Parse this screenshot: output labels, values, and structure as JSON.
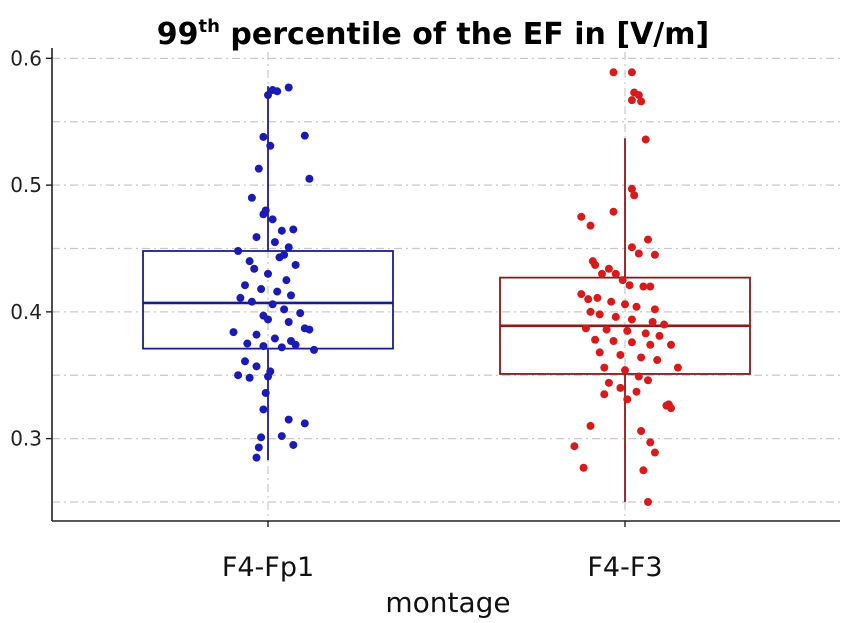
{
  "chart_data": {
    "type": "box",
    "title_main": "99",
    "title_sup": "th",
    "title_rest": " percentile of the EF in [V/m]",
    "xlabel": "montage",
    "ylabel": "",
    "ylim": [
      0.235,
      0.605
    ],
    "yticks": [
      0.3,
      0.4,
      0.5,
      0.6
    ],
    "ytick_labels": [
      "0.3",
      "0.4",
      "0.5",
      "0.6"
    ],
    "grid": true,
    "categories": [
      "F4-Fp1",
      "F4-F3"
    ],
    "series": [
      {
        "category": "F4-Fp1",
        "color": "#1a1ab4",
        "box": {
          "whisker_low": 0.283,
          "q1": 0.371,
          "median": 0.407,
          "q3": 0.448,
          "whisker_high": 0.578
        },
        "points": [
          [
            -0.07,
            0.49
          ],
          [
            0.02,
            0.575
          ],
          [
            0.0,
            0.571
          ],
          [
            0.04,
            0.574
          ],
          [
            0.09,
            0.577
          ],
          [
            -0.02,
            0.538
          ],
          [
            0.01,
            0.531
          ],
          [
            0.16,
            0.539
          ],
          [
            -0.04,
            0.513
          ],
          [
            0.18,
            0.505
          ],
          [
            -0.01,
            0.48
          ],
          [
            -0.02,
            0.477
          ],
          [
            0.02,
            0.473
          ],
          [
            0.06,
            0.464
          ],
          [
            0.11,
            0.465
          ],
          [
            -0.05,
            0.459
          ],
          [
            0.03,
            0.455
          ],
          [
            0.09,
            0.451
          ],
          [
            0.07,
            0.445
          ],
          [
            -0.13,
            0.448
          ],
          [
            -0.08,
            0.44
          ],
          [
            0.05,
            0.443
          ],
          [
            0.12,
            0.437
          ],
          [
            -0.06,
            0.434
          ],
          [
            0.0,
            0.43
          ],
          [
            0.08,
            0.425
          ],
          [
            -0.1,
            0.421
          ],
          [
            -0.03,
            0.418
          ],
          [
            0.04,
            0.416
          ],
          [
            0.1,
            0.413
          ],
          [
            -0.12,
            0.411
          ],
          [
            -0.07,
            0.408
          ],
          [
            0.02,
            0.406
          ],
          [
            0.07,
            0.402
          ],
          [
            0.14,
            0.399
          ],
          [
            -0.02,
            0.397
          ],
          [
            0.0,
            0.394
          ],
          [
            0.09,
            0.392
          ],
          [
            0.16,
            0.387
          ],
          [
            0.18,
            0.386
          ],
          [
            -0.15,
            0.384
          ],
          [
            -0.05,
            0.382
          ],
          [
            0.03,
            0.379
          ],
          [
            0.1,
            0.377
          ],
          [
            -0.09,
            0.375
          ],
          [
            -0.02,
            0.373
          ],
          [
            0.06,
            0.372
          ],
          [
            0.12,
            0.374
          ],
          [
            0.2,
            0.37
          ],
          [
            -0.1,
            0.361
          ],
          [
            -0.05,
            0.357
          ],
          [
            0.01,
            0.353
          ],
          [
            -0.13,
            0.35
          ],
          [
            -0.08,
            0.348
          ],
          [
            0.0,
            0.349
          ],
          [
            -0.01,
            0.336
          ],
          [
            -0.02,
            0.323
          ],
          [
            0.09,
            0.315
          ],
          [
            0.16,
            0.312
          ],
          [
            0.06,
            0.302
          ],
          [
            -0.03,
            0.301
          ],
          [
            0.11,
            0.295
          ],
          [
            -0.04,
            0.293
          ],
          [
            -0.05,
            0.285
          ]
        ]
      },
      {
        "category": "F4-F3",
        "color": "#d81a1a",
        "box": {
          "whisker_low": 0.25,
          "q1": 0.351,
          "median": 0.389,
          "q3": 0.427,
          "whisker_high": 0.537
        },
        "points": [
          [
            -0.19,
            0.475
          ],
          [
            -0.15,
            0.468
          ],
          [
            -0.05,
            0.589
          ],
          [
            0.03,
            0.589
          ],
          [
            0.04,
            0.573
          ],
          [
            0.06,
            0.571
          ],
          [
            0.07,
            0.566
          ],
          [
            0.03,
            0.567
          ],
          [
            0.09,
            0.536
          ],
          [
            0.03,
            0.497
          ],
          [
            0.04,
            0.492
          ],
          [
            -0.05,
            0.479
          ],
          [
            -0.14,
            0.44
          ],
          [
            -0.13,
            0.437
          ],
          [
            -0.07,
            0.434
          ],
          [
            -0.04,
            0.43
          ],
          [
            0.03,
            0.451
          ],
          [
            0.06,
            0.446
          ],
          [
            0.1,
            0.457
          ],
          [
            0.13,
            0.445
          ],
          [
            -0.1,
            0.43
          ],
          [
            -0.01,
            0.425
          ],
          [
            0.02,
            0.421
          ],
          [
            0.08,
            0.42
          ],
          [
            0.11,
            0.42
          ],
          [
            -0.19,
            0.414
          ],
          [
            -0.16,
            0.41
          ],
          [
            -0.12,
            0.411
          ],
          [
            -0.06,
            0.408
          ],
          [
            0.0,
            0.406
          ],
          [
            0.05,
            0.404
          ],
          [
            0.13,
            0.402
          ],
          [
            -0.15,
            0.4
          ],
          [
            -0.11,
            0.398
          ],
          [
            -0.04,
            0.396
          ],
          [
            0.03,
            0.394
          ],
          [
            0.12,
            0.392
          ],
          [
            0.17,
            0.39
          ],
          [
            -0.17,
            0.387
          ],
          [
            -0.08,
            0.386
          ],
          [
            0.01,
            0.385
          ],
          [
            0.09,
            0.383
          ],
          [
            0.15,
            0.381
          ],
          [
            -0.13,
            0.378
          ],
          [
            -0.05,
            0.377
          ],
          [
            0.03,
            0.376
          ],
          [
            0.11,
            0.374
          ],
          [
            0.2,
            0.374
          ],
          [
            -0.11,
            0.368
          ],
          [
            -0.02,
            0.366
          ],
          [
            0.07,
            0.364
          ],
          [
            0.14,
            0.362
          ],
          [
            0.23,
            0.356
          ],
          [
            -0.09,
            0.356
          ],
          [
            0.0,
            0.354
          ],
          [
            0.06,
            0.349
          ],
          [
            0.1,
            0.346
          ],
          [
            -0.07,
            0.344
          ],
          [
            -0.02,
            0.34
          ],
          [
            0.05,
            0.337
          ],
          [
            -0.09,
            0.335
          ],
          [
            0.01,
            0.331
          ],
          [
            0.18,
            0.326
          ],
          [
            0.19,
            0.327
          ],
          [
            0.2,
            0.324
          ],
          [
            -0.15,
            0.31
          ],
          [
            0.07,
            0.306
          ],
          [
            0.11,
            0.297
          ],
          [
            0.13,
            0.289
          ],
          [
            -0.22,
            0.294
          ],
          [
            -0.18,
            0.277
          ],
          [
            0.08,
            0.275
          ],
          [
            0.1,
            0.25
          ]
        ]
      }
    ]
  }
}
